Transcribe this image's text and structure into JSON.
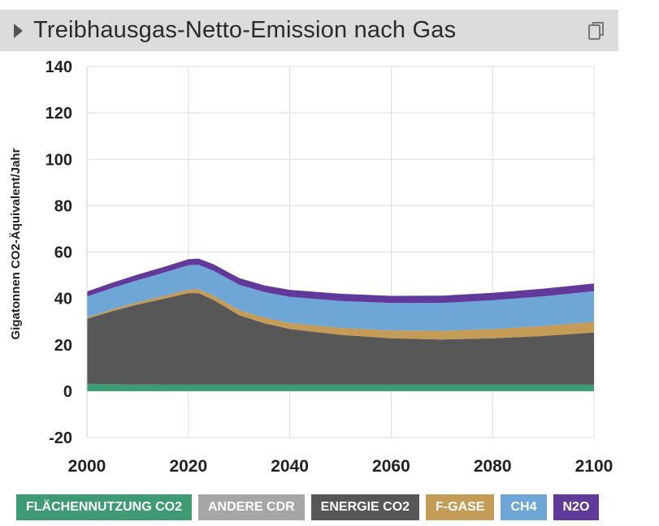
{
  "header": {
    "title": "Treibhausgas-Netto-Emission nach Gas",
    "copy_icon": "copy-icon"
  },
  "chart_data": {
    "type": "area",
    "title": "Treibhausgas-Netto-Emission nach Gas",
    "xlabel": "",
    "ylabel": "Gigatonnen CO2-Äquivalent/Jahr",
    "xlim": [
      2000,
      2100
    ],
    "ylim": [
      -20,
      140
    ],
    "x_ticks": [
      2000,
      2020,
      2040,
      2060,
      2080,
      2100
    ],
    "y_ticks": [
      -20,
      0,
      20,
      40,
      60,
      80,
      100,
      120,
      140
    ],
    "grid": true,
    "stacked": true,
    "legend_position": "bottom",
    "x": [
      2000,
      2005,
      2010,
      2015,
      2020,
      2022,
      2025,
      2030,
      2035,
      2040,
      2050,
      2060,
      2070,
      2080,
      2090,
      2100
    ],
    "series": [
      {
        "name": "FLÄCHENNUTZUNG CO2",
        "color": "#3f9b74",
        "values": [
          3.2,
          3.0,
          2.9,
          2.8,
          2.8,
          2.8,
          2.8,
          2.8,
          2.8,
          2.8,
          2.8,
          2.8,
          2.8,
          2.8,
          2.8,
          2.8
        ]
      },
      {
        "name": "ANDERE CDR",
        "color": "#a6a6a6",
        "values": [
          0,
          0,
          0,
          0,
          0,
          0,
          0,
          0,
          0,
          0,
          0,
          0,
          0,
          0,
          0,
          0
        ]
      },
      {
        "name": "ENERGIE CO2",
        "color": "#575757",
        "values": [
          28.0,
          31.5,
          34.5,
          37.0,
          39.5,
          39.5,
          36.5,
          30.0,
          26.5,
          24.0,
          21.5,
          20.0,
          19.5,
          20.0,
          21.0,
          22.5
        ]
      },
      {
        "name": "F-GASE",
        "color": "#c49b57",
        "values": [
          0.6,
          0.8,
          1.0,
          1.2,
          1.5,
          1.7,
          1.9,
          2.2,
          2.4,
          2.6,
          3.0,
          3.4,
          3.7,
          4.0,
          4.3,
          4.6
        ]
      },
      {
        "name": "CH4",
        "color": "#6ea6d6",
        "values": [
          9.0,
          9.2,
          9.5,
          10.0,
          10.5,
          10.5,
          10.7,
          10.9,
          11.0,
          11.3,
          11.6,
          11.8,
          12.0,
          12.4,
          12.8,
          13.2
        ]
      },
      {
        "name": "N2O",
        "color": "#60399b",
        "values": [
          2.2,
          2.3,
          2.4,
          2.5,
          2.6,
          2.7,
          2.8,
          2.9,
          2.9,
          3.0,
          3.1,
          3.1,
          3.2,
          3.2,
          3.3,
          3.3
        ]
      }
    ]
  }
}
